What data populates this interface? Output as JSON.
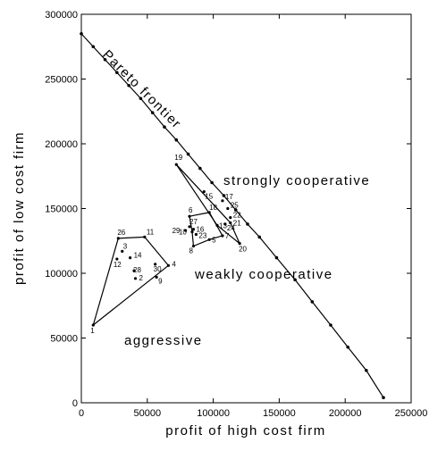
{
  "chart_data": {
    "type": "scatter",
    "title": "",
    "xlabel": "profit of high cost firm",
    "ylabel": "profit of low cost firm",
    "xlim": [
      0,
      250000
    ],
    "ylim": [
      0,
      300000
    ],
    "xticks": [
      0,
      50000,
      100000,
      150000,
      200000,
      250000
    ],
    "yticks": [
      0,
      50000,
      100000,
      150000,
      200000,
      250000,
      300000
    ],
    "grid": false,
    "legend": "none",
    "frontier": {
      "name": "Pareto frontier",
      "x": [
        0,
        9000,
        18000,
        27000,
        36000,
        45000,
        54000,
        63000,
        72000,
        81000,
        90000,
        99000,
        108000,
        117000,
        126000,
        135000,
        148000,
        162000,
        175000,
        189000,
        202000,
        216000,
        229000
      ],
      "y": [
        285000,
        275000,
        265000,
        255000,
        245000,
        235000,
        224000,
        213000,
        203000,
        192000,
        181000,
        170000,
        160000,
        149000,
        138000,
        128000,
        112000,
        95000,
        78000,
        60000,
        43000,
        25000,
        4000
      ]
    },
    "points": [
      {
        "label": "1",
        "x": 9000,
        "y": 60000
      },
      {
        "label": "2",
        "x": 41000,
        "y": 96000
      },
      {
        "label": "3",
        "x": 31000,
        "y": 117000
      },
      {
        "label": "4",
        "x": 66000,
        "y": 106000
      },
      {
        "label": "5",
        "x": 97000,
        "y": 126000
      },
      {
        "label": "6",
        "x": 82000,
        "y": 144000
      },
      {
        "label": "7",
        "x": 107000,
        "y": 129000
      },
      {
        "label": "8",
        "x": 85000,
        "y": 121000
      },
      {
        "label": "9",
        "x": 57000,
        "y": 97000
      },
      {
        "label": "10",
        "x": 84000,
        "y": 132000
      },
      {
        "label": "11",
        "x": 48000,
        "y": 128000
      },
      {
        "label": "12",
        "x": 27000,
        "y": 111000
      },
      {
        "label": "13",
        "x": 103000,
        "y": 137000
      },
      {
        "label": "14",
        "x": 37000,
        "y": 112000
      },
      {
        "label": "15",
        "x": 93000,
        "y": 163000
      },
      {
        "label": "16",
        "x": 85000,
        "y": 134000
      },
      {
        "label": "17",
        "x": 107000,
        "y": 156000
      },
      {
        "label": "18",
        "x": 97000,
        "y": 147000
      },
      {
        "label": "19",
        "x": 72000,
        "y": 184000
      },
      {
        "label": "20",
        "x": 120000,
        "y": 123000
      },
      {
        "label": "21",
        "x": 113000,
        "y": 139000
      },
      {
        "label": "22",
        "x": 113000,
        "y": 143000
      },
      {
        "label": "23",
        "x": 87000,
        "y": 130000
      },
      {
        "label": "24",
        "x": 109000,
        "y": 138000
      },
      {
        "label": "25",
        "x": 111000,
        "y": 150000
      },
      {
        "label": "26",
        "x": 28000,
        "y": 127000
      },
      {
        "label": "27",
        "x": 82000,
        "y": 136000
      },
      {
        "label": "28",
        "x": 40000,
        "y": 102000
      },
      {
        "label": "29",
        "x": 79000,
        "y": 133000
      },
      {
        "label": "30",
        "x": 56000,
        "y": 107000
      }
    ],
    "regions": [
      {
        "name": "aggressive",
        "vertices": [
          "1",
          "26",
          "11",
          "4"
        ]
      },
      {
        "name": "weakly cooperative",
        "vertices": [
          "10",
          "6",
          "18",
          "7",
          "5",
          "8"
        ]
      },
      {
        "name": "strongly cooperative",
        "vertices": [
          "19",
          "21",
          "20",
          "13"
        ]
      }
    ],
    "annotations": [
      {
        "text": "Pareto frontier"
      },
      {
        "text": "strongly cooperative"
      },
      {
        "text": "weakly cooperative"
      },
      {
        "text": "aggressive"
      }
    ]
  }
}
